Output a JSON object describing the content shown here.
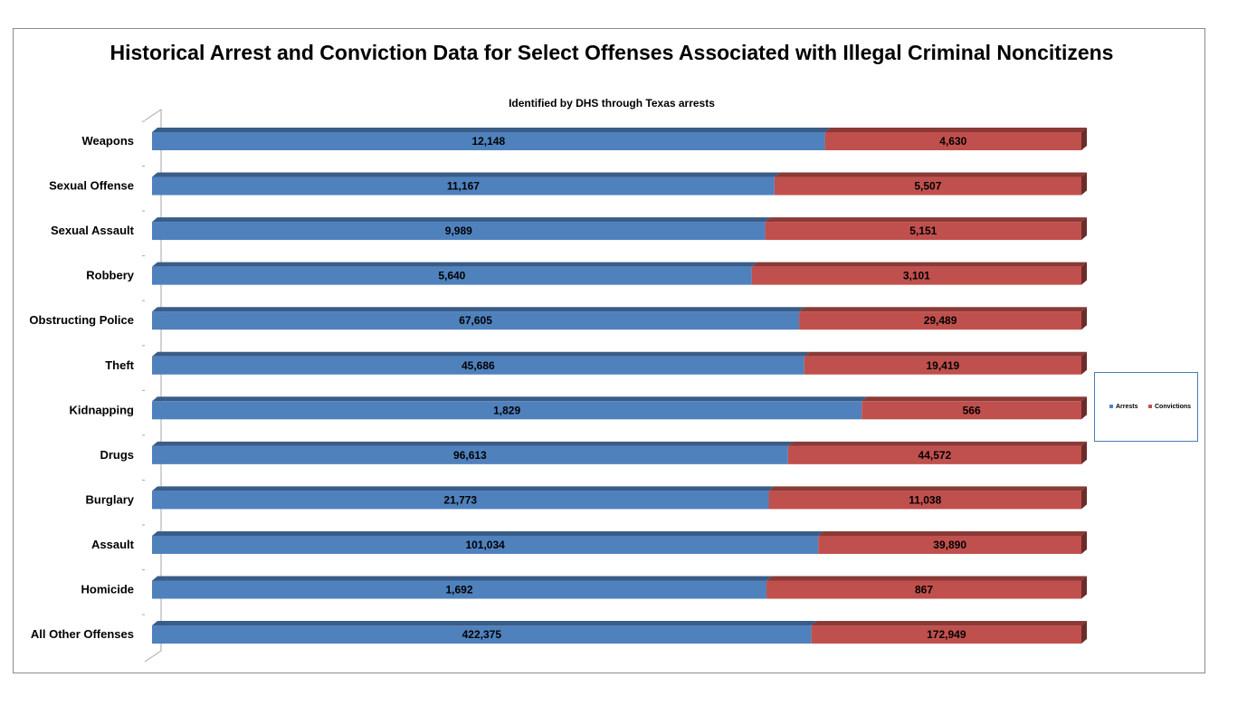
{
  "chart_data": {
    "type": "bar",
    "stacked": "100%",
    "orientation": "horizontal",
    "three_d": true,
    "title": "Historical Arrest and Conviction Data for Select Offenses Associated with Illegal Criminal Noncitizens",
    "subtitle": "Identified by DHS through Texas arrests",
    "categories": [
      "Weapons",
      "Sexual Offense",
      "Sexual Assault",
      "Robbery",
      "Obstructing Police",
      "Theft",
      "Kidnapping",
      "Drugs",
      "Burglary",
      "Assault",
      "Homicide",
      "All Other Offenses"
    ],
    "series": [
      {
        "name": "Arrests",
        "color": "#4f81bd",
        "values": [
          12148,
          11167,
          9989,
          5640,
          67605,
          45686,
          1829,
          96613,
          21773,
          101034,
          1692,
          422375
        ],
        "labels": [
          "12,148",
          "11,167",
          "9,989",
          "5,640",
          "67,605",
          "45,686",
          "1,829",
          "96,613",
          "21,773",
          "101,034",
          "1,692",
          "422,375"
        ]
      },
      {
        "name": "Convictions",
        "color": "#c0504d",
        "values": [
          4630,
          5507,
          5151,
          3101,
          29489,
          19419,
          566,
          44572,
          11038,
          39890,
          867,
          172949
        ],
        "labels": [
          "4,630",
          "5,507",
          "5,151",
          "3,101",
          "29,489",
          "19,419",
          "566",
          "44,572",
          "11,038",
          "39,890",
          "867",
          "172,949"
        ]
      }
    ],
    "legend_position": "right",
    "grid": false
  }
}
